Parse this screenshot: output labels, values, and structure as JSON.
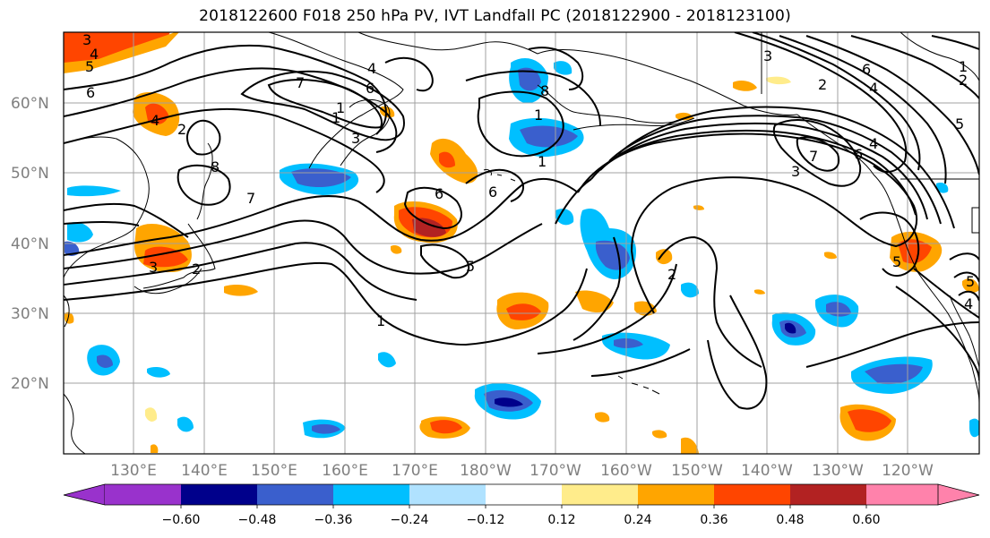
{
  "title": "2018122600 F018 250 hPa PV, IVT Landfall PC (2018122900 - 2018123100)",
  "lat_labels": [
    "60°N",
    "50°N",
    "40°N",
    "30°N",
    "20°N"
  ],
  "lon_labels": [
    "130°E",
    "140°E",
    "150°E",
    "160°E",
    "170°E",
    "180°W",
    "170°W",
    "160°W",
    "150°W",
    "140°W",
    "130°W",
    "120°W"
  ],
  "colorbar": {
    "tick_labels": [
      "−0.60",
      "−0.48",
      "−0.36",
      "−0.24",
      "−0.12",
      "0.12",
      "0.24",
      "0.36",
      "0.48",
      "0.60"
    ],
    "colors": [
      "#9932cc",
      "#00008b",
      "#3a5fcd",
      "#00bfff",
      "#b0e2ff",
      "#ffffff",
      "#ffec8b",
      "#ffa500",
      "#ff4500",
      "#b22222",
      "#ff82ab"
    ]
  },
  "contour_labels": [
    "3",
    "4",
    "5",
    "6",
    "4",
    "2",
    "7",
    "1",
    "6",
    "4",
    "7",
    "1",
    "3",
    "8",
    "8",
    "1",
    "1",
    "6",
    "6",
    "5",
    "3",
    "2",
    "1",
    "2",
    "3",
    "2",
    "6",
    "4",
    "1",
    "2",
    "5",
    "4",
    "6",
    "3",
    "7",
    "5",
    "5",
    "4"
  ],
  "colors": {
    "grid": "#a0a0a0",
    "contour": "#000000",
    "coast": "#000000"
  }
}
